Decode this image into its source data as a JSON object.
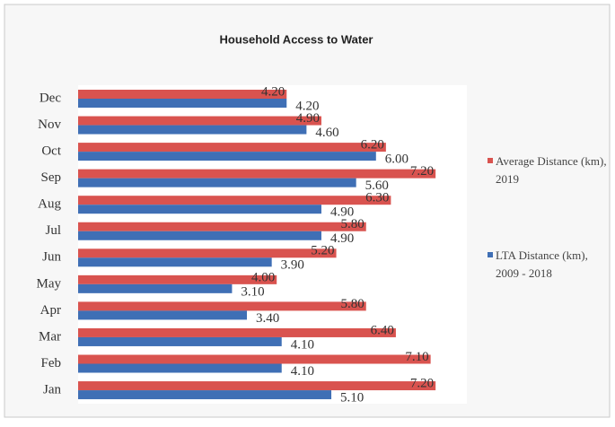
{
  "chart_data": {
    "type": "bar",
    "orientation": "horizontal",
    "title": "Household Access to Water",
    "categories": [
      "Jan",
      "Feb",
      "Mar",
      "Apr",
      "May",
      "Jun",
      "Jul",
      "Aug",
      "Sep",
      "Oct",
      "Nov",
      "Dec"
    ],
    "series": [
      {
        "name": "Average Distance (km), 2019",
        "color": "#d9534f",
        "values": [
          7.2,
          7.1,
          6.4,
          5.8,
          4.0,
          5.2,
          5.8,
          6.3,
          7.2,
          6.2,
          4.9,
          4.2
        ],
        "value_labels": [
          "7.20",
          "7.10",
          "6.40",
          "5.80",
          "4.00",
          "5.20",
          "5.80",
          "6.30",
          "7.20",
          "6.20",
          "4.90",
          "4.20"
        ]
      },
      {
        "name": "LTA Distance (km), 2009 - 2018",
        "color": "#3f6fb5",
        "values": [
          5.1,
          4.1,
          4.1,
          3.4,
          3.1,
          3.9,
          4.9,
          4.9,
          5.6,
          6.0,
          4.6,
          4.2
        ],
        "value_labels": [
          "5.10",
          "4.10",
          "4.10",
          "3.40",
          "3.10",
          "3.90",
          "4.90",
          "4.90",
          "5.60",
          "6.00",
          "4.60",
          "4.20"
        ]
      }
    ],
    "legend": "right"
  }
}
